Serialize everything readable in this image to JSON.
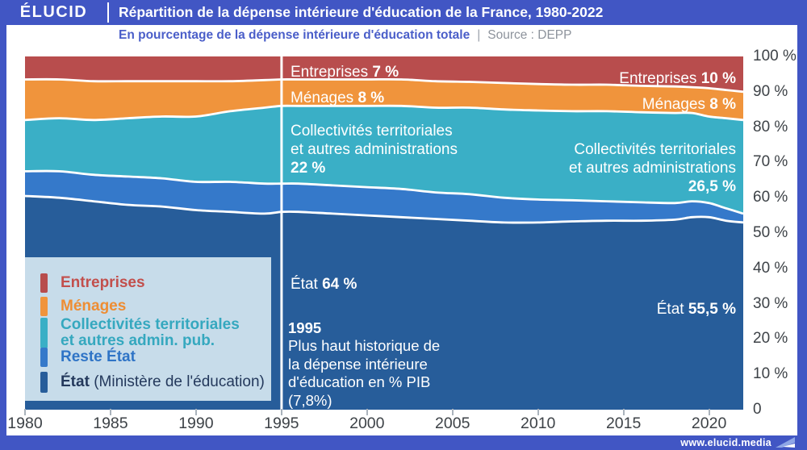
{
  "header": {
    "logo": "ÉLUCID",
    "title": "Répartition de la dépense intérieure d'éducation de la France, 1980-2022",
    "subtitle": "En pourcentage de la dépense intérieure d'éducation totale",
    "separator": "|",
    "source": "Source : DEPP"
  },
  "footer": {
    "url": "www.elucid.media"
  },
  "legend": {
    "items": [
      {
        "id": "entreprises",
        "swatch": "#b84d4d",
        "text_color": "#c24f4c",
        "lines": [
          "Entreprises"
        ]
      },
      {
        "id": "menages",
        "swatch": "#f0943c",
        "text_color": "#ee8d33",
        "lines": [
          "Ménages"
        ]
      },
      {
        "id": "collectivites",
        "swatch": "#3aafc6",
        "text_color": "#35a8bf",
        "lines": [
          "Collectivités territoriales",
          "et autres admin. pub."
        ]
      },
      {
        "id": "reste-etat",
        "swatch": "#3579ca",
        "text_color": "#2f74c6",
        "lines": [
          "Reste État"
        ]
      },
      {
        "id": "etat",
        "swatch": "#275d9a",
        "text_color": "#24395c",
        "bold": "État",
        "lines": [
          "(Ministère de l'éducation)"
        ]
      }
    ]
  },
  "annotations": {
    "y1995": {
      "entreprises_label": "Entreprises",
      "entreprises_value": "7 %",
      "menages_label": "Ménages",
      "menages_value": "8 %",
      "coll_line1": "Collectivités territoriales",
      "coll_line2": "et autres administrations",
      "coll_value": "22 %",
      "etat_label": "État",
      "etat_value": "64 %"
    },
    "y2022": {
      "entreprises_label": "Entreprises",
      "entreprises_value": "10 %",
      "menages_label": "Ménages",
      "menages_value": "8 %",
      "coll_line1": "Collectivités territoriales",
      "coll_line2": "et autres administrations",
      "coll_value": "26,5 %",
      "etat_label": "État",
      "etat_value": "55,5 %"
    },
    "event1995": {
      "year": "1995",
      "line1": "Plus haut historique de",
      "line2": "la dépense intérieure",
      "line3": "d'éducation en % PIB",
      "line4": "(7,8%)"
    }
  },
  "axes": {
    "x_ticks": [
      {
        "label": "1980",
        "year": 1980
      },
      {
        "label": "1985",
        "year": 1985
      },
      {
        "label": "1990",
        "year": 1990
      },
      {
        "label": "1995",
        "year": 1995
      },
      {
        "label": "2000",
        "year": 2000
      },
      {
        "label": "2005",
        "year": 2005
      },
      {
        "label": "2010",
        "year": 2010
      },
      {
        "label": "2015",
        "year": 2015
      },
      {
        "label": "2020",
        "year": 2020
      }
    ],
    "y_ticks": [
      {
        "label": "100 %",
        "value": 100
      },
      {
        "label": "90 %",
        "value": 90
      },
      {
        "label": "80 %",
        "value": 80
      },
      {
        "label": "70 %",
        "value": 70
      },
      {
        "label": "60 %",
        "value": 60
      },
      {
        "label": "50 %",
        "value": 50
      },
      {
        "label": "40 %",
        "value": 40
      },
      {
        "label": "30 %",
        "value": 30
      },
      {
        "label": "20 %",
        "value": 20
      },
      {
        "label": "10 %",
        "value": 10
      },
      {
        "label": "0",
        "value": 0
      }
    ]
  },
  "chart_data": {
    "type": "area",
    "stacked": true,
    "unit": "% of total domestic education expenditure",
    "title": "Répartition de la dépense intérieure d'éducation de la France, 1980-2022",
    "source": "DEPP",
    "xlim": [
      1980,
      2022
    ],
    "ylim": [
      0,
      100
    ],
    "highlight_year": 1995,
    "legend_position": "bottom-left",
    "grid": false,
    "x": [
      1980,
      1982,
      1984,
      1986,
      1988,
      1990,
      1992,
      1994,
      1995,
      1996,
      1998,
      2000,
      2002,
      2004,
      2006,
      2008,
      2010,
      2012,
      2014,
      2016,
      2018,
      2019,
      2020,
      2021,
      2022
    ],
    "series": [
      {
        "name": "État (Ministère de l'éducation)",
        "color": "#275d9a",
        "values": [
          60.5,
          60.0,
          59.0,
          58.0,
          57.5,
          56.5,
          56.0,
          55.5,
          56.0,
          56.0,
          55.5,
          55.0,
          54.5,
          54.0,
          53.5,
          53.0,
          53.0,
          53.3,
          53.5,
          53.5,
          53.8,
          54.5,
          54.5,
          53.5,
          53.0
        ]
      },
      {
        "name": "Reste État",
        "color": "#3579ca",
        "values": [
          7.0,
          7.5,
          7.5,
          8.0,
          8.0,
          8.0,
          8.5,
          8.5,
          8.0,
          8.0,
          8.0,
          8.0,
          8.0,
          7.5,
          7.5,
          7.0,
          6.5,
          6.0,
          5.5,
          5.2,
          4.7,
          4.5,
          4.0,
          3.5,
          2.5
        ]
      },
      {
        "name": "Collectivités territoriales et autres admin. pub.",
        "color": "#3aafc6",
        "values": [
          14.5,
          15.0,
          15.5,
          16.5,
          17.5,
          18.5,
          20.0,
          21.5,
          22.0,
          22.0,
          22.5,
          23.0,
          23.5,
          24.0,
          24.5,
          25.0,
          25.2,
          25.2,
          25.5,
          25.5,
          25.5,
          25.0,
          24.5,
          25.5,
          26.5
        ]
      },
      {
        "name": "Ménages",
        "color": "#f0943c",
        "values": [
          11.5,
          11.0,
          11.0,
          10.5,
          10.0,
          10.0,
          8.5,
          7.8,
          7.5,
          7.5,
          7.5,
          7.5,
          7.5,
          7.5,
          7.3,
          7.5,
          7.5,
          7.5,
          7.5,
          7.5,
          7.5,
          7.3,
          8.0,
          8.0,
          8.0
        ]
      },
      {
        "name": "Entreprises",
        "color": "#b84d4d",
        "values": [
          6.5,
          6.5,
          7.0,
          7.0,
          7.0,
          7.0,
          7.0,
          6.7,
          6.5,
          6.5,
          6.5,
          6.5,
          6.5,
          7.0,
          7.2,
          7.5,
          7.8,
          8.0,
          8.0,
          8.3,
          8.5,
          8.7,
          9.0,
          9.5,
          10.0
        ]
      }
    ],
    "key_annotations": {
      "at_1995": {
        "Entreprises": "7 %",
        "Ménages": "8 %",
        "Collectivités territoriales et autres administrations": "22 %",
        "État": "64 %"
      },
      "at_2022": {
        "Entreprises": "10 %",
        "Ménages": "8 %",
        "Collectivités territoriales et autres administrations": "26,5 %",
        "État": "55,5 %"
      },
      "event": "1995 — Plus haut historique de la dépense intérieure d'éducation en % PIB (7,8%)"
    }
  }
}
